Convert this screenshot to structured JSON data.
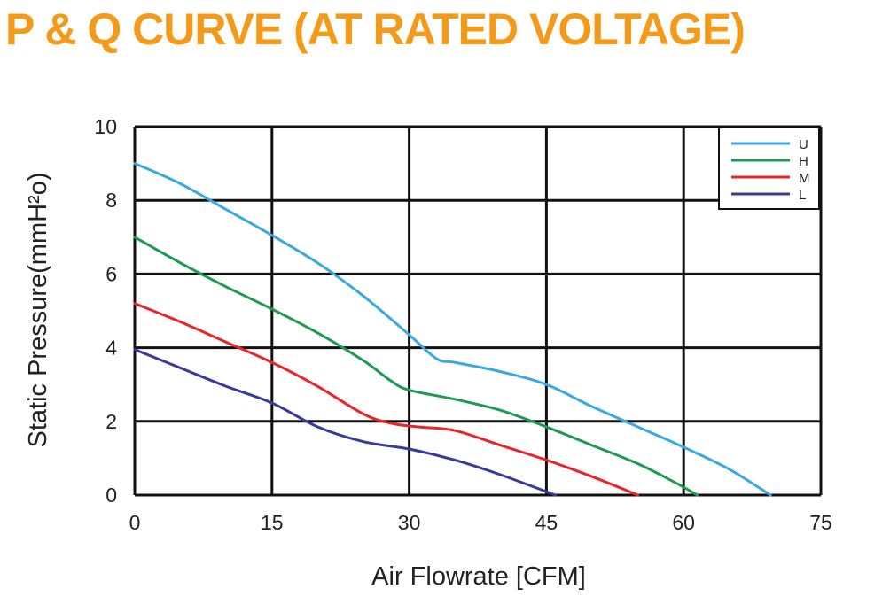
{
  "chart_data": {
    "type": "line",
    "title": "P & Q CURVE (AT RATED VOLTAGE)",
    "xlabel": "Air  Flowrate   [CFM]",
    "ylabel": "Static Pressure(mmH²o)",
    "xlim": [
      0,
      75
    ],
    "ylim": [
      0,
      10
    ],
    "x_ticks": [
      "0",
      "15",
      "30",
      "45",
      "60",
      "75"
    ],
    "y_ticks": [
      "0",
      "2",
      "4",
      "6",
      "8",
      "10"
    ],
    "grid": true,
    "legend_position": "top-right",
    "colors": {
      "title": "#f39a1a",
      "grid": "#111111",
      "text": "#222222"
    },
    "series": [
      {
        "name": "U",
        "color": "#3aa9e0",
        "points": [
          [
            0,
            9.0
          ],
          [
            5,
            8.45
          ],
          [
            10,
            7.75
          ],
          [
            15,
            7.05
          ],
          [
            20,
            6.3
          ],
          [
            25,
            5.4
          ],
          [
            30,
            4.35
          ],
          [
            33,
            3.7
          ],
          [
            35,
            3.6
          ],
          [
            40,
            3.35
          ],
          [
            45,
            3.0
          ],
          [
            50,
            2.4
          ],
          [
            55,
            1.85
          ],
          [
            60,
            1.3
          ],
          [
            65,
            0.7
          ],
          [
            69.5,
            0.0
          ]
        ]
      },
      {
        "name": "H",
        "color": "#1f9a52",
        "points": [
          [
            0,
            7.0
          ],
          [
            5,
            6.3
          ],
          [
            10,
            5.65
          ],
          [
            15,
            5.05
          ],
          [
            20,
            4.4
          ],
          [
            25,
            3.65
          ],
          [
            28,
            3.1
          ],
          [
            30,
            2.85
          ],
          [
            35,
            2.6
          ],
          [
            40,
            2.3
          ],
          [
            45,
            1.85
          ],
          [
            50,
            1.35
          ],
          [
            55,
            0.85
          ],
          [
            59,
            0.35
          ],
          [
            61.5,
            0.0
          ]
        ]
      },
      {
        "name": "M",
        "color": "#e8262a",
        "points": [
          [
            0,
            5.2
          ],
          [
            5,
            4.7
          ],
          [
            10,
            4.15
          ],
          [
            15,
            3.6
          ],
          [
            20,
            2.95
          ],
          [
            25,
            2.2
          ],
          [
            28,
            1.95
          ],
          [
            31,
            1.85
          ],
          [
            35,
            1.75
          ],
          [
            40,
            1.35
          ],
          [
            45,
            0.95
          ],
          [
            50,
            0.5
          ],
          [
            55,
            0.0
          ]
        ]
      },
      {
        "name": "L",
        "color": "#3a3a9a",
        "points": [
          [
            0,
            3.95
          ],
          [
            5,
            3.45
          ],
          [
            10,
            2.95
          ],
          [
            15,
            2.5
          ],
          [
            20,
            1.85
          ],
          [
            25,
            1.45
          ],
          [
            30,
            1.25
          ],
          [
            35,
            0.95
          ],
          [
            40,
            0.55
          ],
          [
            46,
            0.0
          ]
        ]
      }
    ]
  }
}
